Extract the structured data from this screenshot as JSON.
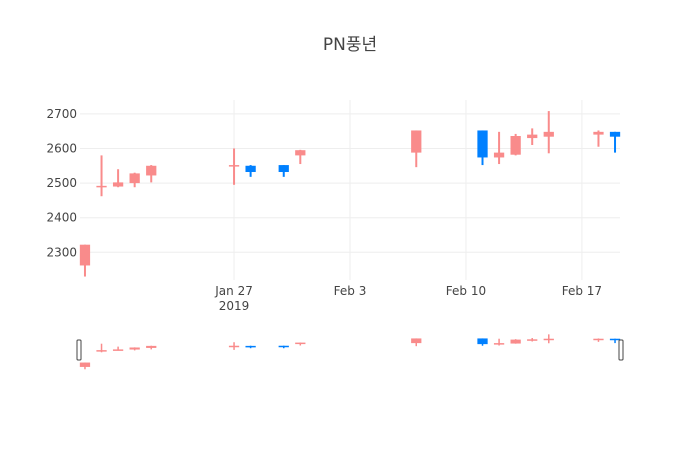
{
  "chart_data": {
    "type": "candlestick",
    "title": "PN풍년",
    "xlabel": "",
    "ylabel": "",
    "x_range": [
      "2019-01-18",
      "2019-02-19"
    ],
    "ylim": [
      2220,
      2740
    ],
    "y_ticks": [
      2300,
      2400,
      2500,
      2600,
      2700
    ],
    "x_ticks": [
      {
        "date": "2019-01-27",
        "label": "Jan 27",
        "sublabel": "2019"
      },
      {
        "date": "2019-02-03",
        "label": "Feb 3",
        "sublabel": ""
      },
      {
        "date": "2019-02-10",
        "label": "Feb 10",
        "sublabel": ""
      },
      {
        "date": "2019-02-17",
        "label": "Feb 17",
        "sublabel": ""
      }
    ],
    "grid": true,
    "colors": {
      "increasing": "#f98b8b",
      "decreasing": "#0080ff",
      "grid": "#eeeeee"
    },
    "range_slider": true,
    "candles": [
      {
        "date": "2019-01-18",
        "open": 2262,
        "high": 2322,
        "low": 2230,
        "close": 2322
      },
      {
        "date": "2019-01-19",
        "open": 2488,
        "high": 2580,
        "low": 2462,
        "close": 2492
      },
      {
        "date": "2019-01-20",
        "open": 2490,
        "high": 2540,
        "low": 2488,
        "close": 2502
      },
      {
        "date": "2019-01-21",
        "open": 2500,
        "high": 2530,
        "low": 2488,
        "close": 2528
      },
      {
        "date": "2019-01-22",
        "open": 2522,
        "high": 2552,
        "low": 2502,
        "close": 2550
      },
      {
        "date": "2019-01-27",
        "open": 2548,
        "high": 2600,
        "low": 2495,
        "close": 2552
      },
      {
        "date": "2019-01-28",
        "open": 2550,
        "high": 2552,
        "low": 2518,
        "close": 2532
      },
      {
        "date": "2019-01-30",
        "open": 2552,
        "high": 2552,
        "low": 2518,
        "close": 2532
      },
      {
        "date": "2019-01-31",
        "open": 2580,
        "high": 2596,
        "low": 2555,
        "close": 2595
      },
      {
        "date": "2019-02-07",
        "open": 2588,
        "high": 2652,
        "low": 2546,
        "close": 2652
      },
      {
        "date": "2019-02-11",
        "open": 2652,
        "high": 2652,
        "low": 2552,
        "close": 2574
      },
      {
        "date": "2019-02-12",
        "open": 2574,
        "high": 2648,
        "low": 2555,
        "close": 2588
      },
      {
        "date": "2019-02-13",
        "open": 2582,
        "high": 2642,
        "low": 2580,
        "close": 2636
      },
      {
        "date": "2019-02-14",
        "open": 2630,
        "high": 2658,
        "low": 2610,
        "close": 2640
      },
      {
        "date": "2019-02-15",
        "open": 2634,
        "high": 2708,
        "low": 2586,
        "close": 2648
      },
      {
        "date": "2019-02-18",
        "open": 2640,
        "high": 2652,
        "low": 2605,
        "close": 2648
      },
      {
        "date": "2019-02-19",
        "open": 2648,
        "high": 2648,
        "low": 2588,
        "close": 2634
      }
    ]
  }
}
